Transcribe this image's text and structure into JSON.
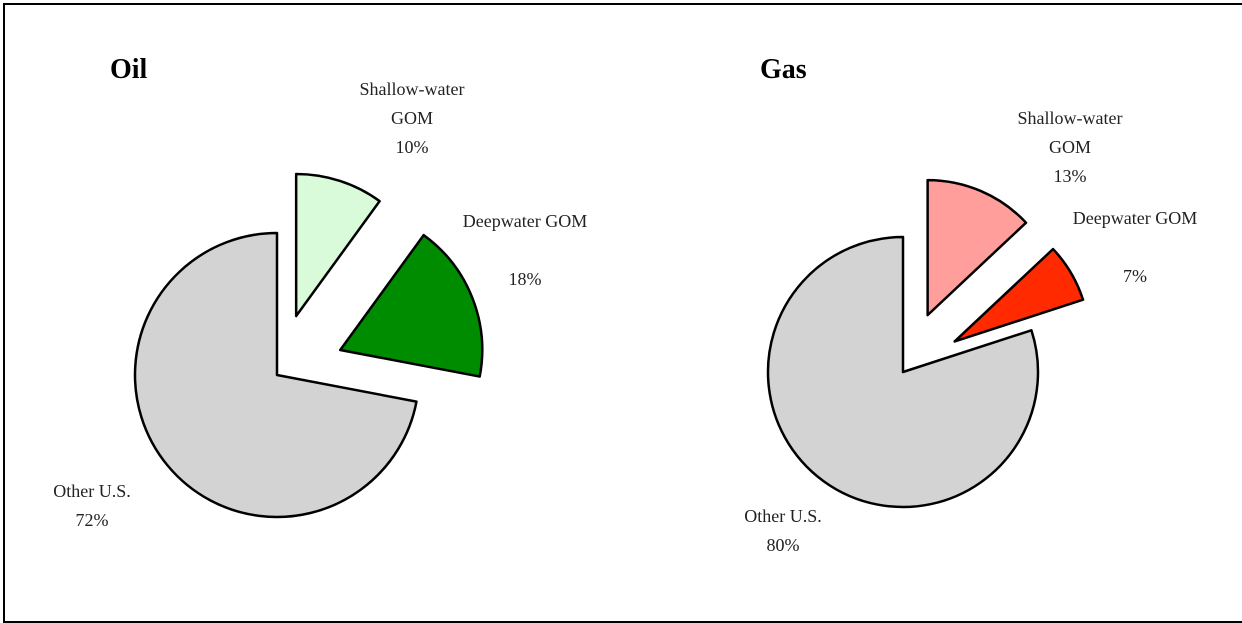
{
  "chart_data": [
    {
      "type": "pie",
      "title": "Oil",
      "categories": [
        "Shallow-water GOM",
        "Deepwater GOM",
        "Other U.S."
      ],
      "values": [
        10,
        18,
        72
      ],
      "value_labels": [
        "10%",
        "18%",
        "72%"
      ],
      "colors": [
        "#d9fbd9",
        "#008c00",
        "#d3d3d3"
      ]
    },
    {
      "type": "pie",
      "title": "Gas",
      "categories": [
        "Shallow-water GOM",
        "Deepwater GOM",
        "Other U.S."
      ],
      "values": [
        13,
        7,
        80
      ],
      "value_labels": [
        "13%",
        "7%",
        "80%"
      ],
      "colors": [
        "#ff9e9a",
        "#ff2a00",
        "#d3d3d3"
      ]
    }
  ]
}
